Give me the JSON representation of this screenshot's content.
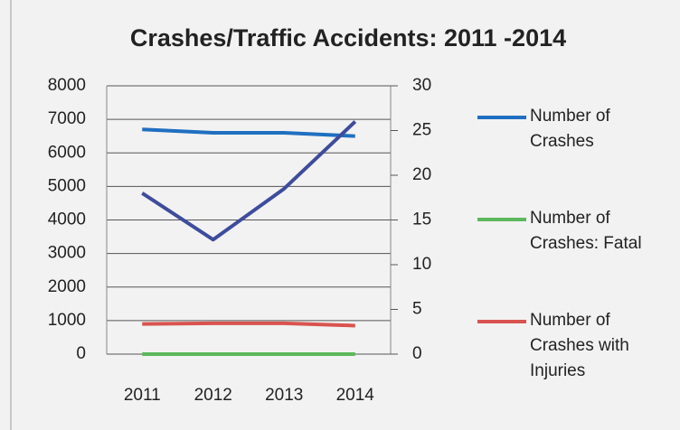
{
  "chart_data": {
    "type": "line",
    "title": "Crashes/Traffic Accidents: 2011 -2014",
    "categories": [
      "2011",
      "2012",
      "2013",
      "2014"
    ],
    "ylim": [
      0,
      8000
    ],
    "yticks": [
      0,
      1000,
      2000,
      3000,
      4000,
      5000,
      6000,
      7000,
      8000
    ],
    "y2lim": [
      0,
      30
    ],
    "y2ticks": [
      0,
      5,
      10,
      15,
      20,
      25,
      30
    ],
    "grid": true,
    "legend": "right",
    "series": [
      {
        "name": "Number of Crashes",
        "color": "#1f6fc0",
        "values": [
          6700,
          6600,
          6600,
          6500
        ]
      },
      {
        "name": "Number of Crashes: Fatal",
        "color": "#5cb85c",
        "values": [
          0,
          0,
          0,
          0
        ]
      },
      {
        "name": "Number of Crashes with Injuries",
        "color": "#d9534f",
        "values": [
          900,
          920,
          920,
          850
        ]
      },
      {
        "color": "#3e4c9c",
        "axis": "y2",
        "values": [
          18,
          12.8,
          18.5,
          26
        ]
      }
    ]
  }
}
